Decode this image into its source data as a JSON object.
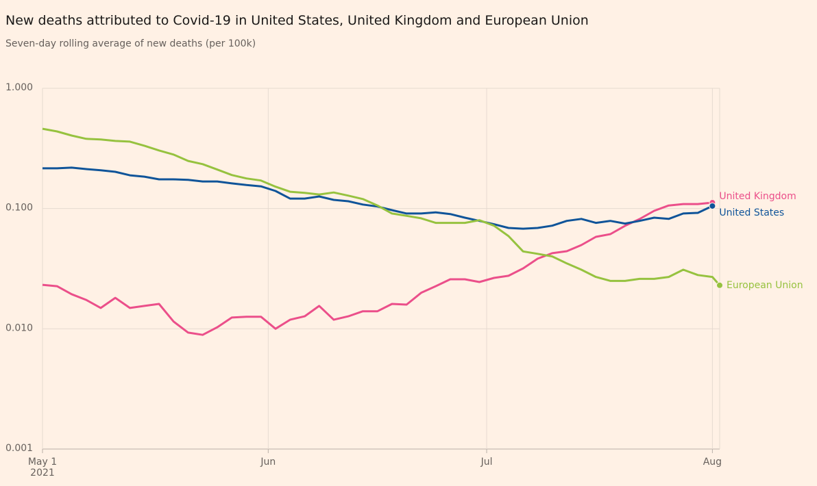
{
  "chart_data": {
    "type": "line",
    "title": "New deaths attributed to Covid-19 in United States, United Kingdom and European Union",
    "subtitle": "Seven-day rolling average of new deaths (per 100k)",
    "log_scale": true,
    "grid": true,
    "x": [
      "2021-05-01",
      "2021-05-03",
      "2021-05-05",
      "2021-05-07",
      "2021-05-09",
      "2021-05-11",
      "2021-05-13",
      "2021-05-15",
      "2021-05-17",
      "2021-05-19",
      "2021-05-21",
      "2021-05-23",
      "2021-05-25",
      "2021-05-27",
      "2021-05-29",
      "2021-05-31",
      "2021-06-02",
      "2021-06-04",
      "2021-06-06",
      "2021-06-08",
      "2021-06-10",
      "2021-06-12",
      "2021-06-14",
      "2021-06-16",
      "2021-06-18",
      "2021-06-20",
      "2021-06-22",
      "2021-06-24",
      "2021-06-26",
      "2021-06-28",
      "2021-06-30",
      "2021-07-02",
      "2021-07-04",
      "2021-07-06",
      "2021-07-08",
      "2021-07-10",
      "2021-07-12",
      "2021-07-14",
      "2021-07-16",
      "2021-07-18",
      "2021-07-20",
      "2021-07-22",
      "2021-07-24",
      "2021-07-26",
      "2021-07-28",
      "2021-07-30",
      "2021-08-01",
      "2021-08-02"
    ],
    "xlim": [
      "2021-05-01",
      "2021-08-02"
    ],
    "xticks": [
      {
        "value": "2021-05-01",
        "label": "May 1 2021"
      },
      {
        "value": "2021-06-01",
        "label": "Jun"
      },
      {
        "value": "2021-07-01",
        "label": "Jul"
      },
      {
        "value": "2021-08-01",
        "label": "Aug"
      }
    ],
    "ylim": [
      0.001,
      1
    ],
    "yticks": [
      {
        "value": 1,
        "label": "1.000"
      },
      {
        "value": 0.1,
        "label": "0.100"
      },
      {
        "value": 0.01,
        "label": "0.010"
      },
      {
        "value": 0.001,
        "label": "0.001"
      }
    ],
    "series": [
      {
        "name": "United Kingdom",
        "color": "#eb4f8a",
        "values": [
          0.0232,
          0.0226,
          0.0194,
          0.0174,
          0.0149,
          0.0181,
          0.0149,
          0.0155,
          0.0161,
          0.0115,
          0.0093,
          0.0089,
          0.0103,
          0.0124,
          0.0126,
          0.0126,
          0.01,
          0.0119,
          0.0127,
          0.0155,
          0.0119,
          0.0127,
          0.014,
          0.014,
          0.0161,
          0.0159,
          0.0199,
          0.0226,
          0.0258,
          0.0258,
          0.0245,
          0.0265,
          0.0276,
          0.0318,
          0.0383,
          0.0425,
          0.0442,
          0.0497,
          0.0582,
          0.0613,
          0.0718,
          0.0818,
          0.0957,
          0.106,
          0.109,
          0.109,
          0.112,
          null
        ]
      },
      {
        "name": "United States",
        "color": "#0f5499",
        "values": [
          0.216,
          0.216,
          0.219,
          0.213,
          0.208,
          0.202,
          0.189,
          0.184,
          0.175,
          0.175,
          0.173,
          0.168,
          0.168,
          0.162,
          0.157,
          0.153,
          0.14,
          0.121,
          0.121,
          0.126,
          0.118,
          0.115,
          0.108,
          0.104,
          0.097,
          0.091,
          0.091,
          0.093,
          0.09,
          0.084,
          0.079,
          0.074,
          0.069,
          0.068,
          0.069,
          0.072,
          0.079,
          0.082,
          0.076,
          0.079,
          0.075,
          0.079,
          0.084,
          0.082,
          0.091,
          0.092,
          0.105,
          null
        ]
      },
      {
        "name": "European Union",
        "color": "#96c23f",
        "values": [
          0.461,
          0.438,
          0.405,
          0.38,
          0.375,
          0.365,
          0.36,
          0.333,
          0.304,
          0.281,
          0.249,
          0.234,
          0.211,
          0.19,
          0.178,
          0.171,
          0.152,
          0.138,
          0.135,
          0.131,
          0.136,
          0.128,
          0.12,
          0.106,
          0.091,
          0.087,
          0.083,
          0.076,
          0.076,
          0.076,
          0.08,
          0.072,
          0.059,
          0.044,
          0.042,
          0.04,
          0.035,
          0.031,
          0.027,
          0.025,
          0.025,
          0.026,
          0.026,
          0.027,
          0.031,
          0.028,
          0.027,
          0.023
        ]
      }
    ]
  }
}
